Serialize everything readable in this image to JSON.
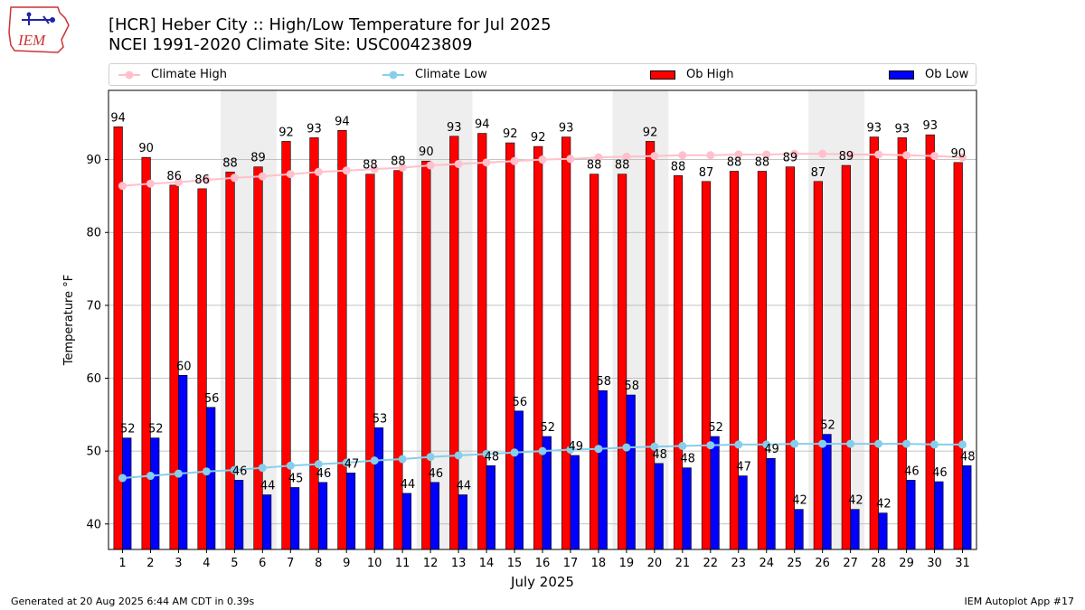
{
  "header": {
    "title_line1": "[HCR] Heber City :: High/Low Temperature for Jul 2025",
    "title_line2": "NCEI 1991-2020 Climate Site: USC00423809",
    "logo_text": "IEM"
  },
  "legend": {
    "climate_high": "Climate High",
    "climate_low": "Climate Low",
    "ob_high": "Ob High",
    "ob_low": "Ob Low"
  },
  "footer": {
    "generated": "Generated at 20 Aug 2025 6:44 AM CDT in 0.39s",
    "app": "IEM Autoplot App #17"
  },
  "colors": {
    "ob_high": "#ff0000",
    "ob_low": "#0000ff",
    "climate_high": "#ffc0cb",
    "climate_low": "#87ceeb",
    "weekend_shade": "#eeeeee",
    "grid": "#b0b0b0"
  },
  "chart_data": {
    "type": "bar",
    "title": "[HCR] Heber City :: High/Low Temperature for Jul 2025",
    "subtitle": "NCEI 1991-2020 Climate Site: USC00423809",
    "xlabel": "July 2025",
    "ylabel": "Temperature °F",
    "ylim": [
      36.5,
      99.5
    ],
    "yticks": [
      40,
      50,
      60,
      70,
      80,
      90
    ],
    "grid": true,
    "legend_position": "top",
    "categories": [
      1,
      2,
      3,
      4,
      5,
      6,
      7,
      8,
      9,
      10,
      11,
      12,
      13,
      14,
      15,
      16,
      17,
      18,
      19,
      20,
      21,
      22,
      23,
      24,
      25,
      26,
      27,
      28,
      29,
      30,
      31
    ],
    "weekend_shaded_days": [
      5,
      6,
      12,
      13,
      19,
      20,
      26,
      27
    ],
    "series": [
      {
        "name": "Ob High",
        "kind": "bar",
        "values": [
          94.5,
          90.3,
          86.5,
          86,
          88.3,
          89,
          92.5,
          93,
          94,
          88,
          88.5,
          89.8,
          93.2,
          93.6,
          92.3,
          91.8,
          93.1,
          88,
          88,
          92.5,
          87.8,
          87,
          88.4,
          88.4,
          89,
          87,
          89.2,
          93.1,
          93,
          93.4,
          89.6
        ],
        "labels": [
          94,
          90,
          86,
          86,
          88,
          89,
          92,
          93,
          94,
          88,
          88,
          90,
          93,
          94,
          92,
          92,
          93,
          88,
          88,
          92,
          88,
          87,
          88,
          88,
          89,
          87,
          89,
          93,
          93,
          93,
          90
        ]
      },
      {
        "name": "Ob Low",
        "kind": "bar",
        "values": [
          51.8,
          51.8,
          60.4,
          56,
          46,
          44,
          45,
          45.7,
          47,
          53.2,
          44.2,
          45.7,
          44,
          48,
          55.5,
          52,
          49.4,
          58.3,
          57.7,
          48.3,
          47.7,
          52,
          46.6,
          49,
          42,
          52.3,
          42,
          41.5,
          46,
          45.8,
          48
        ],
        "labels": [
          52,
          52,
          60,
          56,
          46,
          44,
          45,
          46,
          47,
          53,
          44,
          46,
          44,
          48,
          56,
          52,
          49,
          58,
          58,
          48,
          48,
          52,
          47,
          49,
          42,
          52,
          42,
          42,
          46,
          46,
          48
        ]
      },
      {
        "name": "Climate High",
        "kind": "line",
        "values": [
          86.4,
          86.7,
          86.9,
          87.2,
          87.5,
          87.7,
          88.0,
          88.3,
          88.5,
          88.7,
          88.9,
          89.2,
          89.4,
          89.6,
          89.8,
          90.0,
          90.1,
          90.3,
          90.4,
          90.5,
          90.6,
          90.6,
          90.7,
          90.7,
          90.8,
          90.8,
          90.7,
          90.7,
          90.6,
          90.5,
          90.3
        ]
      },
      {
        "name": "Climate Low",
        "kind": "line",
        "values": [
          46.3,
          46.6,
          46.9,
          47.2,
          47.4,
          47.7,
          48.0,
          48.2,
          48.4,
          48.7,
          48.9,
          49.2,
          49.4,
          49.6,
          49.8,
          50.0,
          50.2,
          50.3,
          50.5,
          50.6,
          50.7,
          50.8,
          50.9,
          50.9,
          51.0,
          51.0,
          51.0,
          51.0,
          51.0,
          50.9,
          50.9
        ]
      }
    ]
  }
}
